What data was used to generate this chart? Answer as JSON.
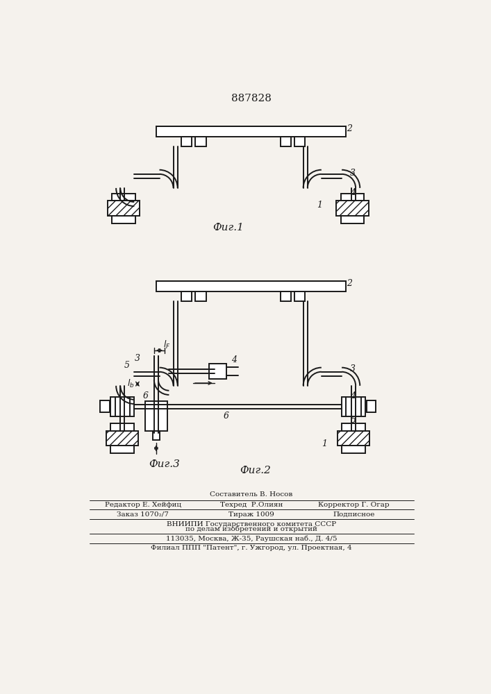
{
  "patent_number": "887828",
  "bg_color": "#f5f2ed",
  "line_color": "#1a1a1a",
  "fig1_label": "Фиг.1",
  "fig2_label": "Фиг.2",
  "fig3_label": "Фиг.3",
  "footer_lines": [
    "Составитель В. Носов",
    "Редактор Е. Хейфиц",
    "Техред  Р.Олиян",
    "Корректор Г. Огар",
    "Заказ 1070₂/7",
    "Тираж 1009",
    "Подписное",
    "ВНИИПИ Государственного комитета СССР",
    "по делам изобретений и открытий",
    "113035, Москва, Ж-35, Раушская наб., Д. 4/5",
    "Филиал ППП \"Патент\", г. Ужгород, ул. Проектная, 4"
  ]
}
